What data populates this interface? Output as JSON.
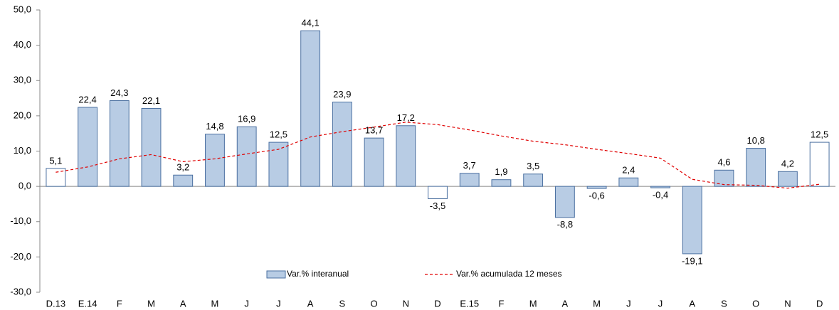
{
  "chart_data": {
    "type": "bar_line",
    "categories": [
      "D.13",
      "E.14",
      "F",
      "M",
      "A",
      "M",
      "J",
      "J",
      "A",
      "S",
      "O",
      "N",
      "D",
      "E.15",
      "F",
      "M",
      "A",
      "M",
      "J",
      "J",
      "A",
      "S",
      "O",
      "N",
      "D"
    ],
    "series": [
      {
        "name": "Var.% interanual",
        "type": "bar",
        "color": "#b8cce4",
        "edge_color": "#4a6fa0",
        "colors": [
          "#ffffff",
          "#b8cce4",
          "#b8cce4",
          "#b8cce4",
          "#b8cce4",
          "#b8cce4",
          "#b8cce4",
          "#b8cce4",
          "#b8cce4",
          "#b8cce4",
          "#b8cce4",
          "#b8cce4",
          "#ffffff",
          "#b8cce4",
          "#b8cce4",
          "#b8cce4",
          "#b8cce4",
          "#b8cce4",
          "#b8cce4",
          "#b8cce4",
          "#b8cce4",
          "#b8cce4",
          "#b8cce4",
          "#b8cce4",
          "#ffffff"
        ],
        "values": [
          5.1,
          22.4,
          24.3,
          22.1,
          3.2,
          14.8,
          16.9,
          12.5,
          44.1,
          23.9,
          13.7,
          17.2,
          -3.5,
          3.7,
          1.9,
          3.5,
          -8.8,
          -0.6,
          2.4,
          -0.4,
          -19.1,
          4.6,
          10.8,
          4.2,
          12.5
        ],
        "value_labels": [
          "5,1",
          "22,4",
          "24,3",
          "22,1",
          "3,2",
          "14,8",
          "16,9",
          "12,5",
          "44,1",
          "23,9",
          "13,7",
          "17,2",
          "-3,5",
          "3,7",
          "1,9",
          "3,5",
          "-8,8",
          "-0,6",
          "2,4",
          "-0,4",
          "-19,1",
          "4,6",
          "10,8",
          "4,2",
          "12,5"
        ]
      },
      {
        "name": "Var.% acumulada 12 meses",
        "type": "line",
        "color": "#e00000",
        "dashed": true,
        "values": [
          4.0,
          5.5,
          7.8,
          9.0,
          7.0,
          7.8,
          9.2,
          10.5,
          14.0,
          15.5,
          16.8,
          18.2,
          17.5,
          16.0,
          14.3,
          12.8,
          11.8,
          10.5,
          9.3,
          8.0,
          2.0,
          0.5,
          0.3,
          -0.5,
          0.6
        ]
      }
    ],
    "ylim": [
      -30,
      50
    ],
    "yticks": [
      {
        "value": -30,
        "label": "-30,0"
      },
      {
        "value": -20,
        "label": "-20,0"
      },
      {
        "value": -10,
        "label": "-10,0"
      },
      {
        "value": 0,
        "label": "0,0"
      },
      {
        "value": 10,
        "label": "10,0"
      },
      {
        "value": 20,
        "label": "20,0"
      },
      {
        "value": 30,
        "label": "30,0"
      },
      {
        "value": 40,
        "label": "40,0"
      },
      {
        "value": 50,
        "label": "50,0"
      }
    ],
    "grid": false,
    "legend": "bottom"
  }
}
